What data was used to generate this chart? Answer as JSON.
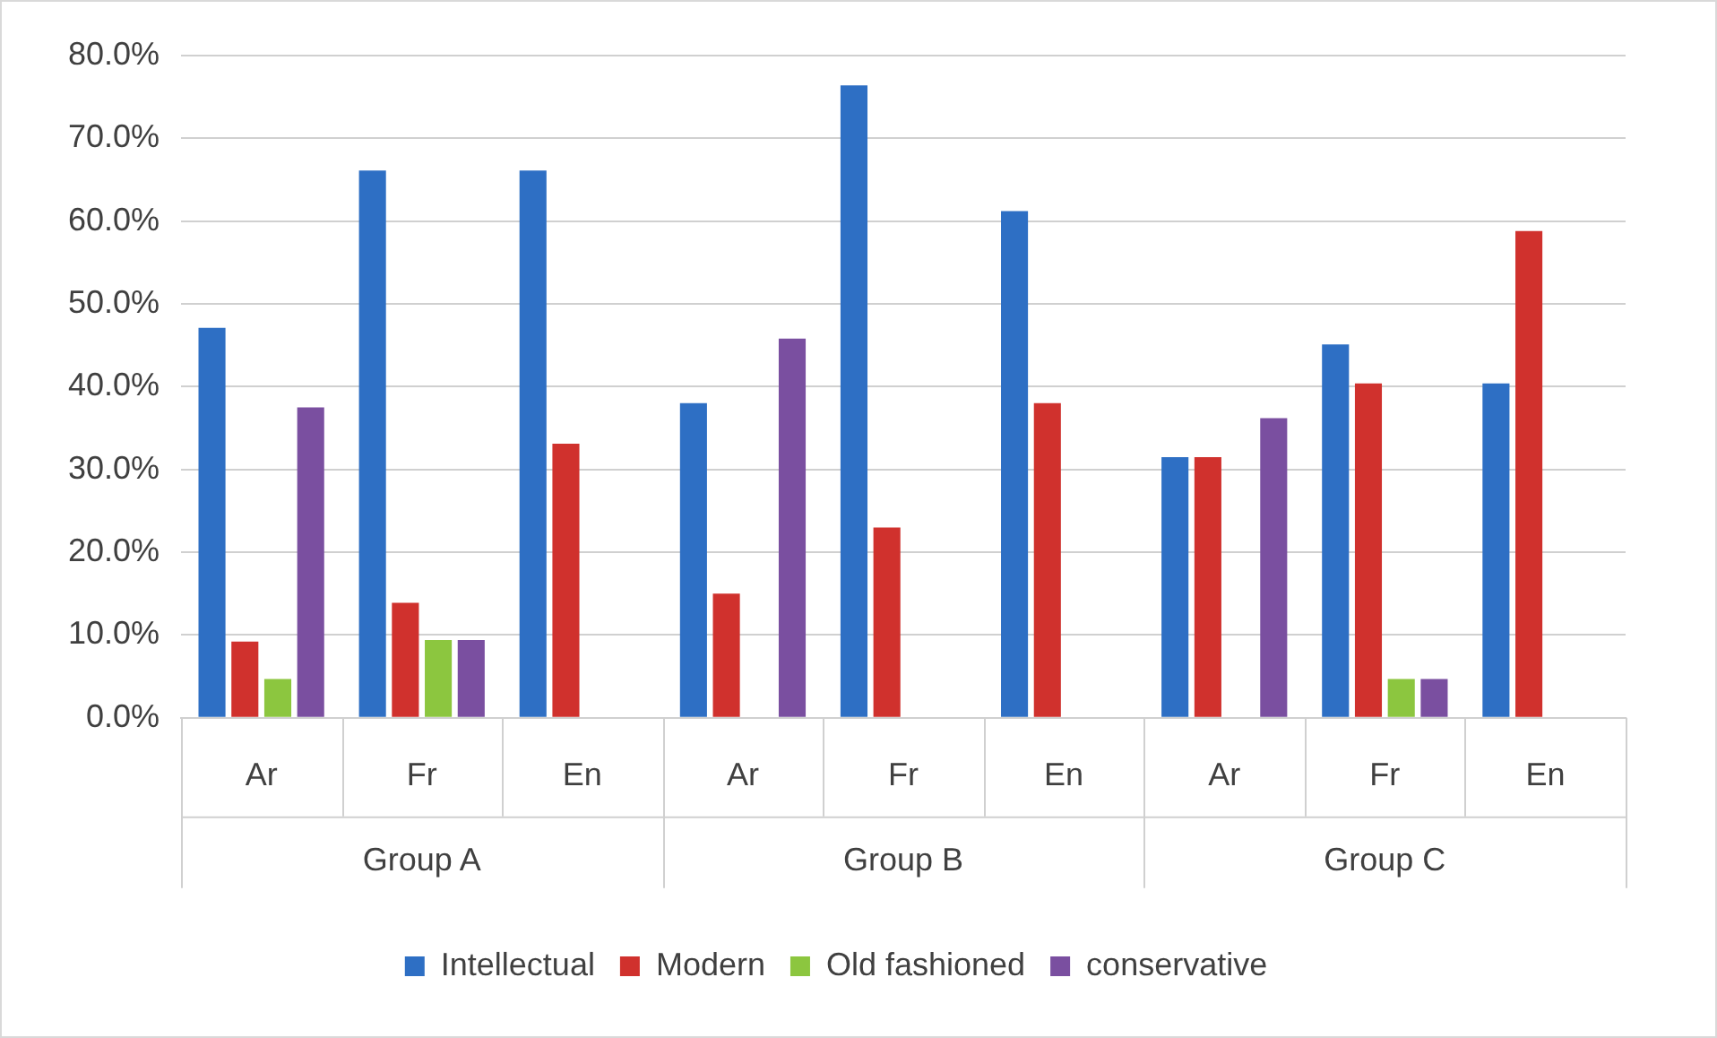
{
  "chart_data": {
    "type": "bar",
    "categories": [
      "Ar",
      "Fr",
      "En",
      "Ar",
      "Fr",
      "En",
      "Ar",
      "Fr",
      "En"
    ],
    "annotations": [
      "Group A",
      "Group B",
      "Group C"
    ],
    "series": [
      {
        "name": "Intellectual",
        "color": "#2e6fc4",
        "values": [
          47.1,
          66.1,
          66.1,
          38,
          76.4,
          61.2,
          31.5,
          45.1,
          40.4
        ]
      },
      {
        "name": "Modern",
        "color": "#d0312d",
        "values": [
          9.2,
          13.9,
          33.1,
          15,
          23,
          38,
          31.5,
          40.4,
          58.8
        ]
      },
      {
        "name": "Old fashioned",
        "color": "#8cc63f",
        "values": [
          4.7,
          9.4,
          0,
          0,
          0,
          0,
          0,
          4.7,
          0
        ]
      },
      {
        "name": "conservative",
        "color": "#7a4fa0",
        "values": [
          37.5,
          9.4,
          0,
          45.8,
          0,
          0,
          36.2,
          4.7,
          0
        ]
      }
    ],
    "ylim": [
      0,
      80
    ],
    "yticks": [
      {
        "value": 0,
        "label": "0.0%"
      },
      {
        "value": 10,
        "label": "10.0%"
      },
      {
        "value": 20,
        "label": "20.0%"
      },
      {
        "value": 30,
        "label": "30.0%"
      },
      {
        "value": 40,
        "label": "40.0%"
      },
      {
        "value": 50,
        "label": "50.0%"
      },
      {
        "value": 60,
        "label": "60.0%"
      },
      {
        "value": 70,
        "label": "70.0%"
      },
      {
        "value": 80,
        "label": "80.0%"
      }
    ],
    "grid": "y",
    "legend": "bottom"
  }
}
